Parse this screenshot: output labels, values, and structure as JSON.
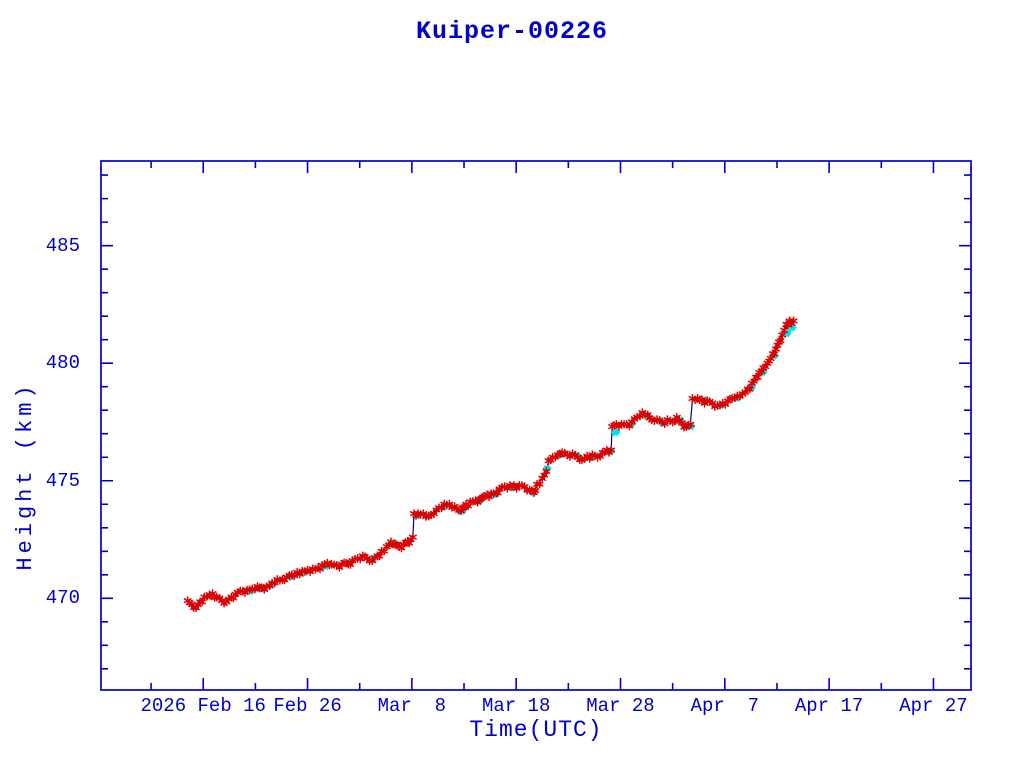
{
  "title": "Kuiper-00226",
  "colors": {
    "axis": "#0000CD",
    "text": "#0000CD",
    "track_line": "#00008B",
    "observation_marker": "#DC0000",
    "predicted_marker": "#00E5EE",
    "background": "#FFFFFF"
  },
  "chart_data": {
    "type": "line",
    "title": "Kuiper-00226",
    "xlabel": "Time(UTC)",
    "ylabel": "Height (km)",
    "x_unit": "days since 2026-02-01 00:00 UTC",
    "xlim": [
      5.2,
      88.6
    ],
    "ylim": [
      466.1,
      488.6
    ],
    "grid": false,
    "legend_position": "none",
    "x_major_ticks": [
      {
        "t": 15,
        "label": "2026 Feb 16"
      },
      {
        "t": 25,
        "label": "Feb 26"
      },
      {
        "t": 35,
        "label": "Mar  8"
      },
      {
        "t": 45,
        "label": "Mar 18"
      },
      {
        "t": 55,
        "label": "Mar 28"
      },
      {
        "t": 65,
        "label": "Apr  7"
      },
      {
        "t": 75,
        "label": "Apr 17"
      },
      {
        "t": 85,
        "label": "Apr 27"
      }
    ],
    "x_minor_step_days": 5,
    "y_major_ticks": [
      {
        "v": 470,
        "label": "470"
      },
      {
        "v": 475,
        "label": "475"
      },
      {
        "v": 480,
        "label": "480"
      },
      {
        "v": 485,
        "label": "485"
      }
    ],
    "y_minor_step_km": 1,
    "maneuver_jumps": [
      {
        "t": 35.15,
        "from_km": 472.6,
        "to_km": 473.6
      },
      {
        "t": 54.15,
        "from_km": 476.3,
        "to_km": 477.3
      },
      {
        "t": 61.8,
        "from_km": 477.4,
        "to_km": 478.5
      }
    ],
    "series": [
      {
        "name": "observed-height-red-asterisks",
        "color": "#DC0000",
        "marker": "asterisk",
        "line_color": "#00008B",
        "points": [
          [
            13.5,
            469.9
          ],
          [
            13.9,
            469.75
          ],
          [
            14.3,
            469.6
          ],
          [
            14.7,
            469.85
          ],
          [
            15.1,
            470.05
          ],
          [
            15.6,
            470.15
          ],
          [
            15.9,
            470.2
          ],
          [
            16.3,
            470.05
          ],
          [
            16.8,
            469.9
          ],
          [
            17.2,
            469.85
          ],
          [
            17.7,
            470.05
          ],
          [
            18.3,
            470.25
          ],
          [
            18.8,
            470.3
          ],
          [
            19.2,
            470.35
          ],
          [
            19.7,
            470.4
          ],
          [
            20.2,
            470.5
          ],
          [
            20.6,
            470.45
          ],
          [
            21.1,
            470.5
          ],
          [
            21.6,
            470.65
          ],
          [
            22.1,
            470.8
          ],
          [
            22.6,
            470.8
          ],
          [
            23.0,
            470.9
          ],
          [
            23.5,
            471.0
          ],
          [
            24.0,
            471.1
          ],
          [
            24.5,
            471.15
          ],
          [
            25.0,
            471.2
          ],
          [
            25.5,
            471.25
          ],
          [
            26.0,
            471.3
          ],
          [
            26.4,
            471.4
          ],
          [
            26.9,
            471.5
          ],
          [
            27.3,
            471.45
          ],
          [
            27.8,
            471.4
          ],
          [
            28.3,
            471.45
          ],
          [
            28.7,
            471.5
          ],
          [
            29.3,
            471.6
          ],
          [
            29.8,
            471.7
          ],
          [
            30.3,
            471.8
          ],
          [
            30.7,
            471.7
          ],
          [
            31.2,
            471.6
          ],
          [
            31.7,
            471.8
          ],
          [
            32.1,
            472.0
          ],
          [
            32.6,
            472.2
          ],
          [
            33.0,
            472.4
          ],
          [
            33.4,
            472.3
          ],
          [
            33.8,
            472.2
          ],
          [
            34.2,
            472.3
          ],
          [
            34.6,
            472.4
          ],
          [
            34.9,
            472.5
          ],
          [
            35.1,
            472.6
          ],
          [
            35.2,
            473.6
          ],
          [
            35.6,
            473.6
          ],
          [
            36.1,
            473.6
          ],
          [
            36.6,
            473.5
          ],
          [
            37.1,
            473.6
          ],
          [
            37.6,
            473.85
          ],
          [
            38.1,
            474.0
          ],
          [
            38.6,
            474.0
          ],
          [
            39.1,
            473.9
          ],
          [
            39.5,
            473.75
          ],
          [
            39.9,
            473.85
          ],
          [
            40.2,
            474.0
          ],
          [
            40.6,
            474.1
          ],
          [
            41.1,
            474.15
          ],
          [
            41.5,
            474.2
          ],
          [
            41.8,
            474.3
          ],
          [
            42.2,
            474.4
          ],
          [
            42.6,
            474.45
          ],
          [
            43.1,
            474.5
          ],
          [
            43.4,
            474.65
          ],
          [
            43.9,
            474.75
          ],
          [
            44.4,
            474.8
          ],
          [
            44.8,
            474.8
          ],
          [
            45.3,
            474.8
          ],
          [
            45.8,
            474.75
          ],
          [
            46.3,
            474.6
          ],
          [
            46.7,
            474.5
          ],
          [
            47.0,
            474.85
          ],
          [
            47.5,
            475.1
          ],
          [
            47.9,
            475.4
          ],
          [
            48.1,
            475.85
          ],
          [
            48.5,
            476.0
          ],
          [
            49.0,
            476.1
          ],
          [
            49.4,
            476.2
          ],
          [
            49.9,
            476.1
          ],
          [
            50.4,
            476.15
          ],
          [
            50.9,
            476.0
          ],
          [
            51.3,
            475.9
          ],
          [
            51.8,
            476.05
          ],
          [
            52.3,
            476.1
          ],
          [
            52.8,
            476.0
          ],
          [
            53.3,
            476.2
          ],
          [
            53.7,
            476.3
          ],
          [
            54.1,
            476.3
          ],
          [
            54.2,
            477.3
          ],
          [
            54.6,
            477.4
          ],
          [
            55.1,
            477.4
          ],
          [
            55.6,
            477.4
          ],
          [
            56.1,
            477.5
          ],
          [
            56.6,
            477.7
          ],
          [
            57.1,
            477.9
          ],
          [
            57.6,
            477.8
          ],
          [
            58.0,
            477.6
          ],
          [
            58.5,
            477.6
          ],
          [
            59.0,
            477.5
          ],
          [
            59.5,
            477.6
          ],
          [
            60.0,
            477.5
          ],
          [
            60.4,
            477.7
          ],
          [
            60.9,
            477.45
          ],
          [
            61.3,
            477.3
          ],
          [
            61.7,
            477.4
          ],
          [
            61.9,
            478.5
          ],
          [
            62.4,
            478.5
          ],
          [
            62.8,
            478.45
          ],
          [
            63.3,
            478.4
          ],
          [
            63.8,
            478.3
          ],
          [
            64.3,
            478.2
          ],
          [
            64.8,
            478.3
          ],
          [
            65.3,
            478.4
          ],
          [
            65.7,
            478.5
          ],
          [
            66.2,
            478.6
          ],
          [
            66.7,
            478.7
          ],
          [
            67.2,
            478.9
          ],
          [
            67.6,
            479.15
          ],
          [
            68.0,
            479.4
          ],
          [
            68.3,
            479.6
          ],
          [
            68.7,
            479.8
          ],
          [
            69.1,
            480.0
          ],
          [
            69.4,
            480.2
          ],
          [
            69.6,
            480.4
          ],
          [
            69.9,
            480.6
          ],
          [
            70.2,
            480.9
          ],
          [
            70.5,
            481.2
          ],
          [
            70.7,
            481.4
          ],
          [
            70.9,
            481.65
          ],
          [
            71.2,
            481.8
          ],
          [
            71.4,
            481.7
          ],
          [
            71.6,
            481.8
          ]
        ]
      },
      {
        "name": "predicted-height-cyan-markers",
        "color": "#00E5EE",
        "marker": "diamond",
        "line_color": "none",
        "points": [
          [
            19.4,
            470.3
          ],
          [
            20.4,
            470.4
          ],
          [
            21.4,
            470.55
          ],
          [
            23.3,
            470.9
          ],
          [
            24.6,
            471.1
          ],
          [
            26.6,
            471.35
          ],
          [
            28.9,
            471.5
          ],
          [
            31.0,
            471.65
          ],
          [
            33.2,
            472.3
          ],
          [
            35.4,
            473.5
          ],
          [
            36.4,
            473.5
          ],
          [
            38.0,
            473.9
          ],
          [
            39.7,
            473.7
          ],
          [
            41.3,
            474.1
          ],
          [
            42.8,
            474.4
          ],
          [
            44.6,
            474.7
          ],
          [
            46.5,
            474.5
          ],
          [
            47.8,
            475.5
          ],
          [
            49.2,
            476.1
          ],
          [
            50.7,
            476.05
          ],
          [
            52.2,
            476.0
          ],
          [
            53.9,
            476.25
          ],
          [
            54.4,
            477.05
          ],
          [
            55.9,
            477.4
          ],
          [
            57.4,
            477.75
          ],
          [
            58.9,
            477.45
          ],
          [
            60.6,
            477.55
          ],
          [
            61.6,
            477.3
          ],
          [
            63.0,
            478.4
          ],
          [
            64.5,
            478.2
          ],
          [
            66.0,
            478.5
          ],
          [
            67.4,
            478.95
          ],
          [
            68.5,
            479.6
          ],
          [
            69.6,
            480.3
          ],
          [
            70.8,
            481.25
          ],
          [
            71.3,
            481.5
          ]
        ]
      }
    ]
  }
}
